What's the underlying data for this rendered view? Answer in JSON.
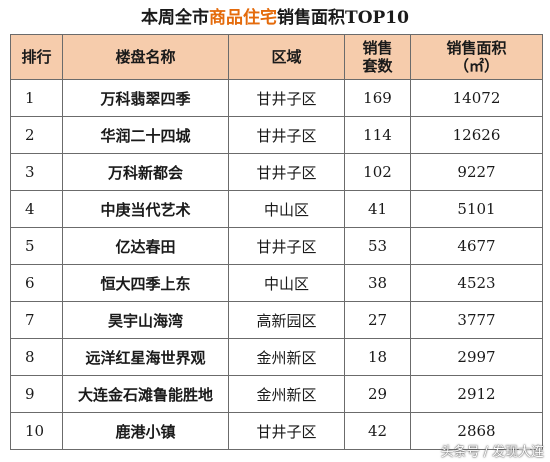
{
  "title": {
    "prefix": "本周全市",
    "highlight": "商品住宅",
    "suffix": "销售面积TOP10"
  },
  "table": {
    "headers": {
      "rank": "排行",
      "name": "楼盘名称",
      "area": "区域",
      "sets_line1": "销售",
      "sets_line2": "套数",
      "size_line1": "销售面积",
      "size_line2": "（㎡）"
    },
    "rows": [
      {
        "rank": "1",
        "name": "万科翡翠四季",
        "area": "甘井子区",
        "sets": "169",
        "size": "14072"
      },
      {
        "rank": "2",
        "name": "华润二十四城",
        "area": "甘井子区",
        "sets": "114",
        "size": "12626"
      },
      {
        "rank": "3",
        "name": "万科新都会",
        "area": "甘井子区",
        "sets": "102",
        "size": "9227"
      },
      {
        "rank": "4",
        "name": "中庚当代艺术",
        "area": "中山区",
        "sets": "41",
        "size": "5101"
      },
      {
        "rank": "5",
        "name": "亿达春田",
        "area": "甘井子区",
        "sets": "53",
        "size": "4677"
      },
      {
        "rank": "6",
        "name": "恒大四季上东",
        "area": "中山区",
        "sets": "38",
        "size": "4523"
      },
      {
        "rank": "7",
        "name": "昊宇山海湾",
        "area": "高新园区",
        "sets": "27",
        "size": "3777"
      },
      {
        "rank": "8",
        "name": "远洋红星海世界观",
        "area": "金州新区",
        "sets": "18",
        "size": "2997"
      },
      {
        "rank": "9",
        "name": "大连金石滩鲁能胜地",
        "area": "金州新区",
        "sets": "29",
        "size": "2912"
      },
      {
        "rank": "10",
        "name": "鹿港小镇",
        "area": "甘井子区",
        "sets": "42",
        "size": "2868"
      }
    ]
  },
  "watermark": {
    "source": "头条号",
    "separator": "/",
    "author": "发现大连"
  },
  "colors": {
    "header_bg": "#f6ccac",
    "highlight": "#e46b0c",
    "border": "#6b6b6b"
  }
}
